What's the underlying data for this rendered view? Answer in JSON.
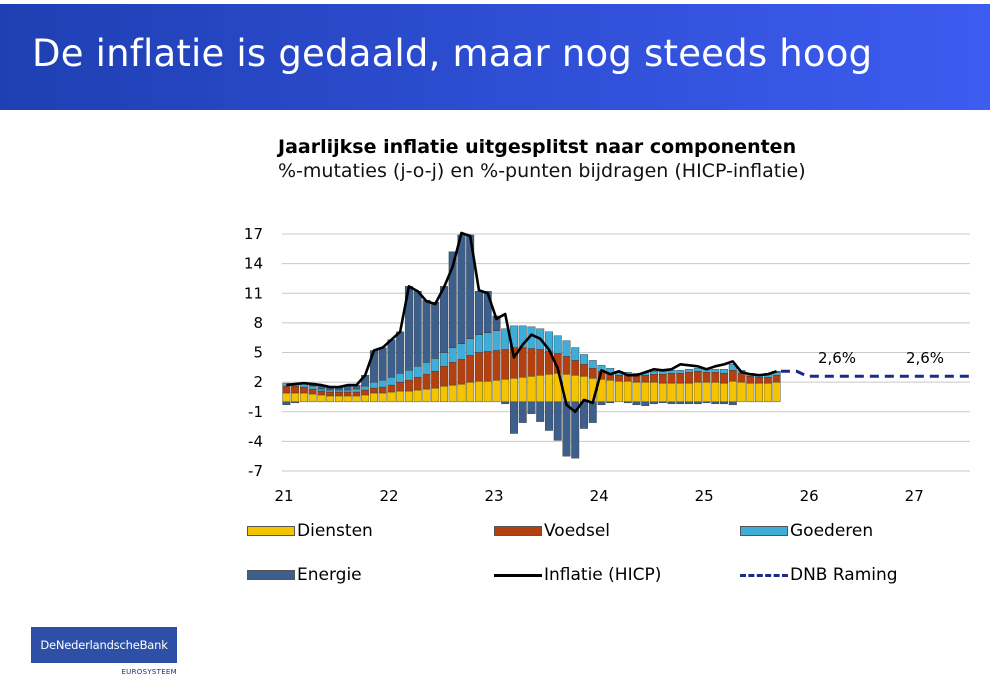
{
  "slide": {
    "title": "De inflatie is gedaald, maar nog steeds hoog",
    "logo_text": "DeNederlandscheBank",
    "logo_subtext": "EUROSYSTEEM"
  },
  "chart_data": {
    "type": "bar",
    "title": "Jaarlijkse inflatie uitgesplitst naar componenten",
    "subtitle": "%-mutaties (j-o-j) en %-punten bijdragen (HICP-inflatie)",
    "stacked": true,
    "ylim": [
      -7,
      17
    ],
    "yticks": [
      "17",
      "14",
      "11",
      "8",
      "5",
      "2",
      "-1",
      "-4",
      "-7"
    ],
    "xlim": [
      21,
      27.55
    ],
    "xticks": [
      "21",
      "22",
      "23",
      "24",
      "25",
      "26",
      "27"
    ],
    "grid": true,
    "months": [
      "2021-01",
      "2021-02",
      "2021-03",
      "2021-04",
      "2021-05",
      "2021-06",
      "2021-07",
      "2021-08",
      "2021-09",
      "2021-10",
      "2021-11",
      "2021-12",
      "2022-01",
      "2022-02",
      "2022-03",
      "2022-04",
      "2022-05",
      "2022-06",
      "2022-07",
      "2022-08",
      "2022-09",
      "2022-10",
      "2022-11",
      "2022-12",
      "2023-01",
      "2023-02",
      "2023-03",
      "2023-04",
      "2023-05",
      "2023-06",
      "2023-07",
      "2023-08",
      "2023-09",
      "2023-10",
      "2023-11",
      "2023-12",
      "2024-01",
      "2024-02",
      "2024-03",
      "2024-04",
      "2024-05",
      "2024-06",
      "2024-07",
      "2024-08",
      "2024-09",
      "2024-10",
      "2024-11",
      "2024-12",
      "2025-01",
      "2025-02",
      "2025-03",
      "2025-04",
      "2025-05",
      "2025-06",
      "2025-07",
      "2025-08",
      "2025-09"
    ],
    "series": [
      {
        "name": "Diensten",
        "color": "#f5c400",
        "values": [
          0.9,
          0.9,
          0.9,
          0.8,
          0.7,
          0.6,
          0.6,
          0.6,
          0.6,
          0.7,
          0.9,
          0.9,
          1.0,
          1.1,
          1.1,
          1.2,
          1.3,
          1.4,
          1.6,
          1.7,
          1.8,
          2.0,
          2.1,
          2.1,
          2.2,
          2.3,
          2.4,
          2.5,
          2.6,
          2.7,
          2.8,
          2.9,
          2.8,
          2.7,
          2.6,
          2.4,
          2.3,
          2.2,
          2.1,
          2.1,
          2.0,
          2.0,
          2.0,
          1.9,
          1.9,
          1.9,
          1.9,
          2.0,
          2.0,
          2.0,
          1.9,
          2.1,
          2.0,
          1.9,
          1.9,
          1.9,
          2.0
        ]
      },
      {
        "name": "Voedsel",
        "color": "#b5400f",
        "values": [
          0.7,
          0.7,
          0.6,
          0.5,
          0.4,
          0.4,
          0.4,
          0.4,
          0.4,
          0.5,
          0.5,
          0.6,
          0.7,
          0.9,
          1.1,
          1.3,
          1.5,
          1.7,
          2.0,
          2.3,
          2.5,
          2.7,
          2.9,
          3.0,
          3.0,
          3.0,
          3.1,
          3.0,
          2.8,
          2.6,
          2.3,
          2.0,
          1.8,
          1.5,
          1.2,
          1.0,
          0.8,
          0.7,
          0.6,
          0.6,
          0.6,
          0.7,
          0.8,
          0.9,
          1.0,
          1.0,
          1.1,
          1.1,
          1.0,
          1.0,
          1.0,
          1.1,
          0.9,
          0.7,
          0.6,
          0.6,
          0.7
        ]
      },
      {
        "name": "Goederen",
        "color": "#3eaed8",
        "values": [
          0.3,
          0.3,
          0.3,
          0.3,
          0.2,
          0.2,
          0.2,
          0.2,
          0.3,
          0.4,
          0.6,
          0.7,
          0.8,
          0.9,
          1.0,
          1.1,
          1.2,
          1.3,
          1.4,
          1.5,
          1.6,
          1.7,
          1.8,
          1.9,
          2.0,
          2.1,
          2.2,
          2.2,
          2.2,
          2.1,
          2.0,
          1.8,
          1.6,
          1.3,
          1.0,
          0.8,
          0.6,
          0.5,
          0.4,
          0.3,
          0.3,
          0.3,
          0.3,
          0.3,
          0.3,
          0.3,
          0.3,
          0.3,
          0.3,
          0.3,
          0.4,
          0.6,
          0.3,
          0.3,
          0.2,
          0.3,
          0.3
        ]
      },
      {
        "name": "Energie",
        "color": "#3d5f8c",
        "values": [
          -0.3,
          -0.1,
          0.1,
          0.3,
          0.4,
          0.3,
          0.3,
          0.5,
          0.4,
          1.1,
          3.2,
          3.3,
          3.8,
          4.2,
          8.5,
          7.6,
          6.3,
          5.7,
          6.7,
          9.7,
          11.0,
          10.5,
          4.4,
          4.2,
          1.5,
          -0.2,
          -3.2,
          -2.1,
          -1.2,
          -2.0,
          -2.9,
          -3.9,
          -5.5,
          -5.7,
          -2.7,
          -2.1,
          -0.3,
          -0.1,
          0.0,
          -0.1,
          -0.3,
          -0.4,
          -0.2,
          -0.1,
          -0.2,
          -0.2,
          -0.2,
          -0.2,
          -0.1,
          -0.2,
          -0.2,
          -0.3,
          0.0,
          0.0,
          0.0,
          0.1,
          0.1
        ]
      }
    ],
    "line": {
      "name": "Inflatie (HICP)",
      "color": "#000000",
      "values": [
        1.7,
        1.8,
        1.9,
        1.8,
        1.7,
        1.5,
        1.5,
        1.7,
        1.7,
        2.7,
        5.2,
        5.5,
        6.3,
        7.1,
        11.7,
        11.2,
        10.2,
        9.9,
        11.6,
        13.7,
        17.1,
        16.8,
        11.3,
        11.0,
        8.4,
        8.9,
        4.5,
        5.8,
        6.8,
        6.4,
        5.3,
        3.4,
        -0.3,
        -1.0,
        0.2,
        -0.1,
        3.2,
        2.8,
        3.1,
        2.7,
        2.7,
        3.0,
        3.3,
        3.2,
        3.3,
        3.8,
        3.7,
        3.6,
        3.3,
        3.6,
        3.8,
        4.1,
        3.0,
        2.8,
        2.7,
        2.8,
        3.1
      ]
    },
    "forecast": {
      "name": "DNB Raming",
      "color": "#1a2a8c",
      "x": [
        25.75,
        25.9,
        26.0,
        27.55
      ],
      "values": [
        3.1,
        3.1,
        2.6,
        2.6
      ]
    },
    "annotations": [
      "2,6%",
      "2,6%"
    ]
  },
  "legend": [
    "Diensten",
    "Voedsel",
    "Goederen",
    "Energie",
    "Inflatie (HICP)",
    "DNB Raming"
  ]
}
